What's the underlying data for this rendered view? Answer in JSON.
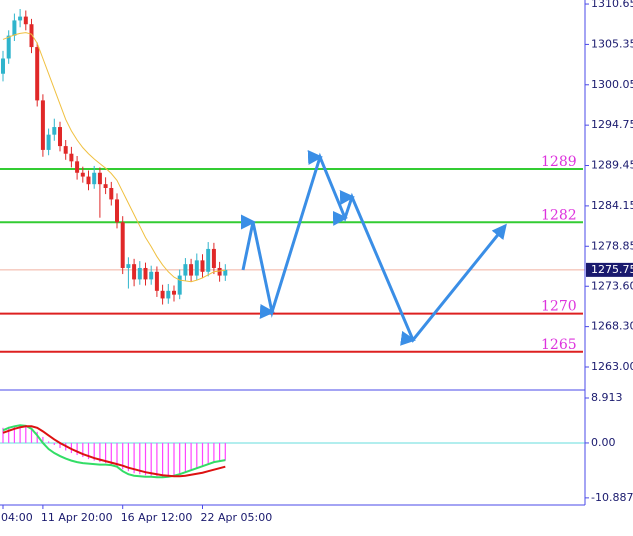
{
  "chart_data": [
    {
      "type": "candlestick",
      "categories": [
        "04:00",
        null,
        null,
        null,
        null,
        null,
        null,
        "11 Apr 20:00",
        null,
        null,
        null,
        null,
        null,
        null,
        null,
        null,
        null,
        null,
        null,
        null,
        null,
        "16 Apr 12:00",
        null,
        null,
        null,
        null,
        null,
        null,
        null,
        null,
        null,
        null,
        null,
        null,
        null,
        "22 Apr 05:00",
        null,
        null,
        null,
        null
      ],
      "open": [
        1301.5,
        1303.5,
        1306.5,
        1308.5,
        1309,
        1308,
        1305,
        1298,
        1291.5,
        1293.5,
        1294.5,
        1292,
        1291,
        1290,
        1288.5,
        1288,
        1287,
        1288.5,
        1287,
        1286.5,
        1285,
        1282,
        1276,
        1276.5,
        1274.5,
        1276,
        1274.5,
        1275.5,
        1273,
        1272,
        1273,
        1272.5,
        1275,
        1276.5,
        1275,
        1277,
        1275.5,
        1278.5,
        1276,
        1275
      ],
      "high": [
        1304.5,
        1307.2,
        1309.4,
        1310,
        1309.8,
        1308.7,
        1305.6,
        1298.8,
        1294.3,
        1295.6,
        1295.2,
        1292.8,
        1291.9,
        1290.7,
        1289.3,
        1288.8,
        1289.4,
        1289.2,
        1287.9,
        1287.3,
        1285.8,
        1282.8,
        1277.4,
        1277.2,
        1276.9,
        1276.7,
        1276.3,
        1276.2,
        1273.8,
        1273.9,
        1273.7,
        1275.8,
        1277.3,
        1277.2,
        1277.9,
        1277.8,
        1279.4,
        1279.3,
        1276.8,
        1276.5
      ],
      "low": [
        1300.5,
        1302.8,
        1305.8,
        1307.6,
        1307.2,
        1304.2,
        1297.2,
        1290.6,
        1290.8,
        1292.7,
        1291.3,
        1290.2,
        1289.2,
        1287.6,
        1287.2,
        1286.2,
        1286.4,
        1282.6,
        1285.7,
        1284.2,
        1281.2,
        1275.2,
        1273.3,
        1273.6,
        1273.8,
        1273.7,
        1273.8,
        1272.2,
        1271.2,
        1271.3,
        1271.6,
        1271.9,
        1274.3,
        1274.2,
        1274.4,
        1274.7,
        1274.9,
        1275.2,
        1274.2,
        1274.3
      ],
      "close": [
        1303.5,
        1306.5,
        1308.5,
        1309,
        1308,
        1305,
        1298,
        1291.5,
        1293.5,
        1294.5,
        1292,
        1291,
        1290,
        1288.5,
        1288,
        1287,
        1288.5,
        1287,
        1286.5,
        1285,
        1282,
        1276,
        1276.5,
        1274.5,
        1276,
        1274.5,
        1275.5,
        1273,
        1272,
        1273,
        1272.5,
        1275,
        1276.5,
        1275,
        1277,
        1275.5,
        1278.5,
        1276,
        1275,
        1275.75
      ],
      "up_color": "#2fb4cc",
      "down_color": "#e02828",
      "moving_average": {
        "color": "#f0c040",
        "values": [
          1306,
          1306.3,
          1306.6,
          1306.8,
          1306.9,
          1306.7,
          1305.5,
          1303.5,
          1301.5,
          1299.5,
          1297.5,
          1295.5,
          1294,
          1292.8,
          1291.8,
          1291,
          1290.3,
          1289.7,
          1289.1,
          1288.4,
          1287.5,
          1286,
          1284.5,
          1283,
          1281.5,
          1280,
          1278.8,
          1277.5,
          1276.4,
          1275.5,
          1274.8,
          1274.4,
          1274.3,
          1274.2,
          1274.4,
          1274.7,
          1275.1,
          1275.5,
          1275.6,
          1275.7
        ]
      },
      "levels": [
        {
          "value": 1289,
          "color": "#33cc33"
        },
        {
          "value": 1282,
          "color": "#33cc33"
        },
        {
          "value": 1270,
          "color": "#dd2020"
        },
        {
          "value": 1265,
          "color": "#dd2020"
        }
      ],
      "current_price": 1275.75,
      "ylim": [
        1259.98,
        1311.18
      ],
      "yticks": [
        1310.65,
        1305.35,
        1300.05,
        1294.75,
        1289.45,
        1284.15,
        1278.85,
        {
          "value": 1273.6,
          "label": "1273.60"
        },
        {
          "value": 1268.3,
          "label": "1268.30"
        },
        {
          "value": 1263,
          "label": "1263.00"
        }
      ]
    },
    {
      "type": "bar",
      "values": [
        3,
        3.2,
        3.4,
        3.5,
        3.4,
        3,
        2.2,
        1.2,
        0.3,
        -0.4,
        -1,
        -1.5,
        -2,
        -2.4,
        -2.8,
        -3.2,
        -3.5,
        -3.8,
        -4,
        -4.3,
        -4.6,
        -5.2,
        -5.6,
        -6,
        -6.2,
        -6.4,
        -6.5,
        -6.6,
        -6.7,
        -6.6,
        -6.4,
        -6.1,
        -5.8,
        -5.4,
        -5,
        -4.6,
        -4.2,
        -3.9,
        -3.7,
        -3.5
      ],
      "color": "#ff44ff",
      "lines": [
        {
          "color": "#33dd66",
          "values": [
            2.5,
            3,
            3.3,
            3.5,
            3.4,
            2.8,
            1.5,
            0,
            -1.2,
            -2,
            -2.6,
            -3.1,
            -3.5,
            -3.8,
            -4,
            -4.1,
            -4.2,
            -4.3,
            -4.3,
            -4.4,
            -4.7,
            -5.6,
            -6.2,
            -6.5,
            -6.6,
            -6.7,
            -6.7,
            -6.8,
            -6.8,
            -6.7,
            -6.5,
            -6.2,
            -5.8,
            -5.4,
            -5,
            -4.6,
            -4.2,
            -3.8,
            -3.6,
            -3.4
          ]
        },
        {
          "color": "#dd1111",
          "values": [
            2,
            2.4,
            2.8,
            3.1,
            3.3,
            3.3,
            3,
            2.3,
            1.5,
            0.7,
            0,
            -0.6,
            -1.2,
            -1.7,
            -2.2,
            -2.6,
            -3,
            -3.3,
            -3.6,
            -3.9,
            -4.2,
            -4.5,
            -4.9,
            -5.2,
            -5.5,
            -5.8,
            -6,
            -6.2,
            -6.4,
            -6.5,
            -6.6,
            -6.6,
            -6.5,
            -6.3,
            -6.1,
            -5.9,
            -5.6,
            -5.3,
            -5,
            -4.7
          ]
        }
      ],
      "zero_line_color": "#66dddd",
      "ylim": [
        -12.3,
        10.1
      ],
      "yticks": [
        8.913,
        {
          "value": 0,
          "label": "0.00"
        },
        -10.887
      ]
    }
  ]
}
